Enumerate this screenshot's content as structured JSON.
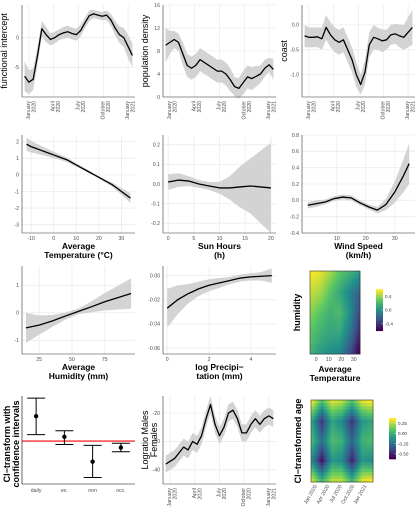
{
  "colors": {
    "band": "#d3d3d3",
    "line": "#000000",
    "grid": "#ebebeb",
    "zero_line": "#ff0000",
    "viridis": [
      "#440154",
      "#3b528b",
      "#21918c",
      "#5ec962",
      "#fde725"
    ]
  },
  "chart_data": [
    {
      "type": "line",
      "ylabel": "functional intercept",
      "xlabel": "",
      "x_ticks": [
        "January 2020",
        "April 2020",
        "July 2020",
        "October 2020",
        "January 2021"
      ],
      "x": [
        0,
        0.5,
        1,
        1.5,
        2,
        2.5,
        3,
        3.5,
        4,
        4.5,
        5,
        5.5,
        6,
        6.5,
        7,
        7.5,
        8,
        8.5,
        9,
        9.5,
        10,
        10.5,
        11,
        11.5,
        12,
        12.5
      ],
      "y": [
        -6.5,
        -7.5,
        -7.0,
        -3.0,
        1.5,
        0.5,
        -0.3,
        0.0,
        0.5,
        0.8,
        1.0,
        0.7,
        0.5,
        1.2,
        2.5,
        3.7,
        4.0,
        3.8,
        3.6,
        3.8,
        3.0,
        1.6,
        0.5,
        0.0,
        -1.5,
        -3.0
      ],
      "lower": [
        -9.0,
        -9.5,
        -8.8,
        -4.5,
        0.2,
        -0.8,
        -1.3,
        -1.0,
        -0.4,
        -0.2,
        0.0,
        -0.3,
        -0.5,
        0.2,
        1.6,
        2.8,
        3.3,
        3.1,
        2.9,
        3.0,
        2.0,
        0.4,
        -0.9,
        -1.6,
        -3.5,
        -5.0
      ],
      "upper": [
        -4.0,
        -5.5,
        -5.2,
        -1.5,
        2.8,
        1.8,
        0.7,
        1.0,
        1.4,
        1.8,
        2.0,
        1.7,
        1.5,
        2.2,
        3.4,
        4.6,
        4.7,
        4.5,
        4.3,
        4.6,
        4.0,
        2.8,
        1.9,
        1.6,
        0.5,
        -1.0
      ],
      "y_ticks": [
        "0",
        "-5"
      ],
      "ylim": [
        -10,
        5.5
      ]
    },
    {
      "type": "line",
      "ylabel": "population density",
      "xlabel": "",
      "x_ticks": [
        "January 2020",
        "April 2020",
        "July 2020",
        "October 2020",
        "January 2021"
      ],
      "x": [
        0,
        0.5,
        1,
        1.5,
        2,
        2.5,
        3,
        3.5,
        4,
        4.5,
        5,
        5.5,
        6,
        6.5,
        7,
        7.5,
        8,
        8.5,
        9,
        9.5,
        10,
        10.5,
        11,
        11.5,
        12,
        12.5
      ],
      "y": [
        9.0,
        9.5,
        10.0,
        9.5,
        7.5,
        5.5,
        5.0,
        5.5,
        6.5,
        6.0,
        5.5,
        5.0,
        4.5,
        4.5,
        4.0,
        3.0,
        1.8,
        1.5,
        2.5,
        3.5,
        3.2,
        3.6,
        4.0,
        5.0,
        5.6,
        4.8
      ],
      "lower": [
        6.0,
        7.5,
        8.5,
        8.0,
        5.5,
        3.5,
        3.0,
        3.5,
        4.5,
        4.0,
        3.5,
        3.0,
        2.5,
        2.5,
        2.0,
        1.0,
        0.2,
        -0.3,
        0.5,
        1.5,
        1.2,
        1.8,
        2.5,
        3.5,
        4.4,
        3.0
      ],
      "upper": [
        12.0,
        11.5,
        11.5,
        11.0,
        9.5,
        7.5,
        7.0,
        7.5,
        8.5,
        8.0,
        7.5,
        7.0,
        6.5,
        6.5,
        6.0,
        5.0,
        3.4,
        3.3,
        4.5,
        5.5,
        5.2,
        5.4,
        5.5,
        6.5,
        6.8,
        6.6
      ],
      "y_ticks": [
        "16",
        "12",
        "8",
        "4",
        "0"
      ],
      "ylim": [
        0,
        16
      ]
    },
    {
      "type": "line",
      "ylabel": "coast",
      "xlabel": "",
      "x_ticks": [
        "January 2020",
        "April 2020",
        "July 2020",
        "October 2020",
        "January 2021"
      ],
      "x": [
        0,
        0.5,
        1,
        1.5,
        2,
        2.5,
        3,
        3.5,
        4,
        4.5,
        5,
        5.5,
        6,
        6.5,
        7,
        7.5,
        8,
        8.5,
        9,
        9.5,
        10,
        10.5,
        11,
        11.5,
        12,
        12.5
      ],
      "y": [
        -0.22,
        -0.25,
        -0.25,
        -0.24,
        -0.28,
        -0.05,
        -0.2,
        -0.3,
        -0.35,
        -0.3,
        -0.5,
        -0.7,
        -1.0,
        -1.2,
        -0.95,
        -0.4,
        -0.25,
        -0.28,
        -0.32,
        -0.3,
        -0.2,
        -0.18,
        -0.22,
        -0.25,
        -0.15,
        -0.05
      ],
      "lower": [
        -0.45,
        -0.45,
        -0.45,
        -0.45,
        -0.5,
        -0.3,
        -0.45,
        -0.55,
        -0.6,
        -0.55,
        -0.75,
        -0.95,
        -1.25,
        -1.4,
        -1.2,
        -0.65,
        -0.5,
        -0.5,
        -0.55,
        -0.5,
        -0.4,
        -0.38,
        -0.45,
        -0.5,
        -0.45,
        -0.4
      ],
      "upper": [
        0.0,
        -0.05,
        -0.05,
        -0.05,
        -0.06,
        0.2,
        0.05,
        -0.05,
        -0.1,
        -0.05,
        -0.25,
        -0.45,
        -0.75,
        -1.0,
        -0.7,
        -0.15,
        0.0,
        -0.06,
        -0.09,
        -0.1,
        0.0,
        0.02,
        0.01,
        0.0,
        0.15,
        0.3
      ],
      "y_ticks": [
        "0.0",
        "-0.5",
        "-1.0"
      ],
      "ylim": [
        -1.45,
        0.4
      ]
    },
    {
      "type": "line",
      "xlabel": "Average\nTemperature (°C)",
      "ylabel": "",
      "x": [
        -12,
        -10,
        -8,
        -6,
        -4,
        -2,
        0,
        2,
        4,
        6,
        8,
        10,
        12,
        14,
        16,
        18,
        20,
        22,
        24,
        26,
        28,
        30,
        32,
        34
      ],
      "y": [
        1.85,
        1.7,
        1.6,
        1.5,
        1.4,
        1.3,
        1.2,
        1.1,
        1.0,
        0.9,
        0.75,
        0.6,
        0.45,
        0.3,
        0.15,
        0.0,
        -0.15,
        -0.3,
        -0.45,
        -0.6,
        -0.8,
        -1.0,
        -1.2,
        -1.4
      ],
      "lower": [
        1.45,
        1.35,
        1.3,
        1.22,
        1.15,
        1.08,
        1.0,
        0.93,
        0.85,
        0.76,
        0.63,
        0.5,
        0.36,
        0.22,
        0.08,
        -0.07,
        -0.22,
        -0.38,
        -0.55,
        -0.73,
        -0.96,
        -1.2,
        -1.45,
        -1.7
      ],
      "upper": [
        2.25,
        2.05,
        1.9,
        1.78,
        1.65,
        1.52,
        1.4,
        1.27,
        1.15,
        1.04,
        0.87,
        0.7,
        0.54,
        0.38,
        0.22,
        0.07,
        -0.08,
        -0.22,
        -0.35,
        -0.47,
        -0.64,
        -0.8,
        -0.95,
        -1.1
      ],
      "x_ticks": [
        "-10",
        "0",
        "10",
        "20",
        "30"
      ],
      "x_tick_values": [
        -10,
        0,
        10,
        20,
        30
      ],
      "y_ticks": [
        "2",
        "1",
        "0",
        "-1",
        "-2",
        "-3"
      ],
      "y_tick_values": [
        2,
        1,
        0,
        -1,
        -2,
        -3
      ],
      "xlim": [
        -14,
        36
      ],
      "ylim": [
        -3.5,
        2.4
      ]
    },
    {
      "type": "line",
      "xlabel": "Sun Hours\n(h)",
      "ylabel": "",
      "x": [
        0,
        2,
        4,
        6,
        8,
        10,
        12,
        14,
        16,
        18,
        20
      ],
      "y": [
        0.01,
        0.02,
        0.015,
        0.0,
        -0.01,
        -0.02,
        -0.02,
        -0.015,
        -0.01,
        -0.015,
        -0.02
      ],
      "lower": [
        -0.03,
        -0.015,
        -0.01,
        -0.02,
        -0.03,
        -0.05,
        -0.08,
        -0.12,
        -0.15,
        -0.2,
        -0.25
      ],
      "upper": [
        0.05,
        0.055,
        0.04,
        0.02,
        0.01,
        0.01,
        0.04,
        0.09,
        0.13,
        0.17,
        0.21
      ],
      "x_ticks": [
        "0",
        "5",
        "10",
        "15",
        "20"
      ],
      "x_tick_values": [
        0,
        5,
        10,
        15,
        20
      ],
      "y_ticks": [
        "0.2",
        "0.1",
        "0.0",
        "-0.1",
        "-0.2"
      ],
      "y_tick_values": [
        0.2,
        0.1,
        0.0,
        -0.1,
        -0.2
      ],
      "xlim": [
        -1,
        21
      ],
      "ylim": [
        -0.25,
        0.25
      ]
    },
    {
      "type": "line",
      "xlabel": "Wind Speed\n(km/h)",
      "ylabel": "",
      "x": [
        0,
        3,
        6,
        9,
        12,
        15,
        18,
        21,
        24,
        27,
        30,
        33,
        35
      ],
      "y": [
        -0.06,
        -0.04,
        -0.02,
        0.02,
        0.04,
        0.03,
        -0.03,
        -0.08,
        -0.12,
        -0.05,
        0.1,
        0.3,
        0.45
      ],
      "lower": [
        -0.1,
        -0.08,
        -0.05,
        -0.01,
        0.01,
        0.0,
        -0.06,
        -0.11,
        -0.16,
        -0.12,
        -0.03,
        0.1,
        0.2
      ],
      "upper": [
        -0.02,
        0.0,
        0.01,
        0.05,
        0.07,
        0.06,
        0.0,
        -0.05,
        -0.08,
        0.02,
        0.23,
        0.5,
        0.7
      ],
      "x_ticks": [
        "10",
        "20",
        "30"
      ],
      "x_tick_values": [
        10,
        20,
        30
      ],
      "y_ticks": [
        "0.8",
        "0.6",
        "0.4",
        "0.2",
        "0.0",
        "-0.2",
        "-0.4"
      ],
      "y_tick_values": [
        0.8,
        0.6,
        0.4,
        0.2,
        0.0,
        -0.2,
        -0.4
      ],
      "xlim": [
        -2,
        37
      ],
      "ylim": [
        -0.4,
        0.8
      ]
    },
    {
      "type": "line",
      "xlabel": "Average\nHumidity (mm)",
      "ylabel": "",
      "x": [
        15,
        25,
        35,
        45,
        55,
        65,
        75,
        85,
        95
      ],
      "y": [
        -0.55,
        -0.45,
        -0.3,
        -0.12,
        0.05,
        0.22,
        0.4,
        0.55,
        0.7
      ],
      "lower": [
        -1.1,
        -0.8,
        -0.52,
        -0.25,
        -0.05,
        0.02,
        0.08,
        0.12,
        0.15
      ],
      "upper": [
        0.0,
        -0.1,
        -0.08,
        0.01,
        0.15,
        0.42,
        0.72,
        0.98,
        1.25
      ],
      "x_ticks": [
        "25",
        "50",
        "75"
      ],
      "x_tick_values": [
        25,
        50,
        75
      ],
      "y_ticks": [
        "1",
        "0",
        "-1"
      ],
      "y_tick_values": [
        1,
        0,
        -1
      ],
      "xlim": [
        12,
        98
      ],
      "ylim": [
        -1.5,
        1.7
      ]
    },
    {
      "type": "line",
      "xlabel": "log Precipi−\ntation (mm)",
      "ylabel": "",
      "x": [
        0,
        0.5,
        1,
        1.5,
        2,
        2.5,
        3,
        3.5,
        4,
        4.5,
        5
      ],
      "y": [
        -0.027,
        -0.02,
        -0.015,
        -0.011,
        -0.008,
        -0.006,
        -0.004,
        -0.002,
        -0.001,
        -0.0005,
        0.0
      ],
      "lower": [
        -0.043,
        -0.032,
        -0.023,
        -0.017,
        -0.013,
        -0.01,
        -0.007,
        -0.005,
        -0.004,
        -0.004,
        -0.006
      ],
      "upper": [
        -0.011,
        -0.008,
        -0.007,
        -0.005,
        -0.003,
        -0.002,
        -0.001,
        0.001,
        0.002,
        0.003,
        0.006
      ],
      "x_ticks": [
        "0",
        "2",
        "4"
      ],
      "x_tick_values": [
        0,
        2,
        4
      ],
      "y_ticks": [
        "0.00",
        "-0.02",
        "-0.04",
        "-0.06"
      ],
      "y_tick_values": [
        0.0,
        -0.02,
        -0.04,
        -0.06
      ],
      "xlim": [
        -0.2,
        5.2
      ],
      "ylim": [
        -0.065,
        0.008
      ]
    },
    {
      "type": "heatmap",
      "xlabel": "Average\nTemperature",
      "ylabel": "humidity",
      "x_ticks": [
        "0",
        "10",
        "20",
        "30"
      ],
      "legend_ticks": [
        "0.4",
        "0.0",
        "-0.4"
      ],
      "legend_placement": "right",
      "grid": [
        [
          0.5,
          0.45,
          0.35,
          0.2,
          0.1,
          0.0
        ],
        [
          0.4,
          0.35,
          0.2,
          0.05,
          -0.1,
          -0.25
        ],
        [
          0.3,
          0.2,
          0.1,
          0.15,
          -0.05,
          -0.35
        ],
        [
          0.2,
          0.1,
          0.05,
          0.05,
          -0.15,
          -0.45
        ],
        [
          0.1,
          0.0,
          -0.05,
          -0.1,
          -0.3,
          -0.6
        ]
      ]
    },
    {
      "type": "errorbar",
      "ylabel": "CI−transform with\nconfidence intervals",
      "categories": [
        "daily",
        "ex.",
        "non",
        "occ."
      ],
      "values": [
        5.8,
        1.0,
        -4.8,
        -1.5
      ],
      "lower": [
        1.5,
        -0.8,
        -8.5,
        -2.5
      ],
      "upper": [
        10.0,
        2.4,
        -1.0,
        -0.5
      ],
      "reference_line": 0,
      "ylim": [
        -10,
        10.5
      ]
    },
    {
      "type": "line",
      "ylabel": "Logratio Males\nFemales",
      "xlabel": "",
      "x_ticks": [
        "January 2020",
        "April 2020",
        "July 2020",
        "October 2020",
        "January 2021"
      ],
      "x": [
        0,
        0.5,
        1,
        1.5,
        2,
        2.5,
        3,
        3.5,
        4,
        4.5,
        5,
        5.5,
        6,
        6.5,
        7,
        7.5,
        8,
        8.5,
        9,
        9.5,
        10,
        10.5,
        11,
        11.5,
        12
      ],
      "y": [
        -38,
        -37,
        -36,
        -34,
        -32,
        -33,
        -30,
        -31,
        -28,
        -22,
        -17,
        -24,
        -28,
        -25,
        -20,
        -19,
        -22,
        -27,
        -27,
        -24,
        -22,
        -24,
        -22,
        -21,
        -22
      ],
      "lower": [
        -41,
        -40,
        -39,
        -37,
        -35,
        -36,
        -33,
        -34,
        -31,
        -25,
        -20,
        -27,
        -31,
        -28,
        -23,
        -22,
        -25,
        -30,
        -30,
        -27,
        -25,
        -27,
        -25,
        -24,
        -25
      ],
      "upper": [
        -35,
        -34,
        -33,
        -31,
        -29,
        -30,
        -27,
        -28,
        -25,
        -19,
        -14,
        -21,
        -25,
        -22,
        -17,
        -16,
        -19,
        -24,
        -24,
        -21,
        -19,
        -21,
        -19,
        -18,
        -19
      ],
      "y_ticks": [
        "-20",
        "-30",
        "-40"
      ],
      "ylim": [
        -45,
        -14
      ]
    },
    {
      "type": "heatmap",
      "xlabel": "",
      "ylabel": "CI−transformed age",
      "x_ticks": [
        "Jan 2020",
        "Apr 2020",
        "Jul 2020",
        "Oct 2020",
        "Jan 2021"
      ],
      "legend_ticks": [
        "0.25",
        "0.00",
        "-0.25",
        "-0.50"
      ],
      "legend_placement": "right",
      "grid": [
        [
          0.4,
          0.1,
          0.35,
          0.3,
          0.1,
          0.35,
          0.4
        ],
        [
          0.0,
          -0.4,
          0.0,
          -0.1,
          -0.4,
          -0.05,
          0.0
        ],
        [
          0.1,
          -0.2,
          0.1,
          0.05,
          -0.25,
          0.05,
          0.1
        ],
        [
          -0.1,
          -0.5,
          -0.05,
          -0.1,
          -0.45,
          -0.05,
          -0.1
        ],
        [
          0.35,
          0.05,
          0.3,
          0.3,
          0.05,
          0.35,
          0.4
        ]
      ]
    }
  ]
}
